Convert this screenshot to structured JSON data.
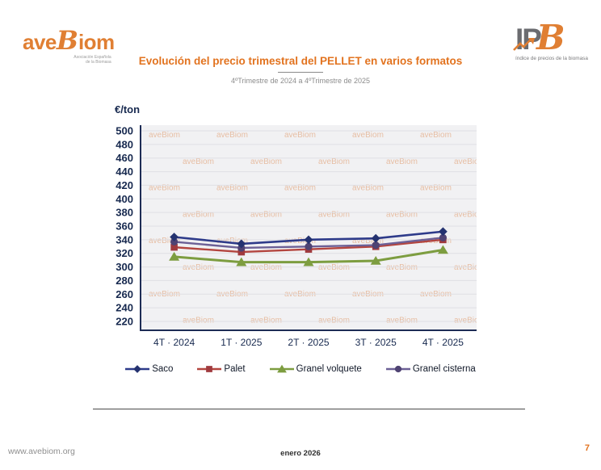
{
  "header": {
    "logo_avebiom": {
      "prefix": "ave",
      "b": "B",
      "suffix": "iom",
      "caption_line1": "Asociación Española",
      "caption_line2": "de la Biomasa"
    },
    "logo_ipb": {
      "text_ip": "IP",
      "text_b": "B",
      "caption": "índice de precios de la biomasa"
    }
  },
  "title_block": {
    "title": "Evolución del precio trimestral del PELLET en varios formatos",
    "subtitle": "4ºTrimestre de 2024 a 4ºTrimestre de 2025"
  },
  "chart_data": {
    "type": "line",
    "title": "Evolución del precio trimestral del PELLET en varios formatos",
    "unit_label": "€/ton",
    "xlabel": "",
    "ylabel": "€/ton",
    "categories": [
      "4T · 2024",
      "1T · 2025",
      "2T · 2025",
      "3T · 2025",
      "4T · 2025"
    ],
    "series": [
      {
        "name": "Saco",
        "marker": "diamond",
        "color": "#2e3b8a",
        "marker_color": "#243270",
        "values": [
          344,
          334,
          340,
          342,
          352
        ]
      },
      {
        "name": "Palet",
        "marker": "square",
        "color": "#b3453f",
        "marker_color": "#a03a3e",
        "values": [
          329,
          322,
          326,
          330,
          340
        ]
      },
      {
        "name": "Granel volquete",
        "marker": "triangle",
        "color": "#7d9d40",
        "marker_color": "#7d9d40",
        "values": [
          315,
          307,
          307,
          309,
          325
        ]
      },
      {
        "name": "Granel cisterna",
        "marker": "circle",
        "color": "#6c6096",
        "marker_color": "#4f4373",
        "values": [
          337,
          328,
          330,
          332,
          343
        ]
      }
    ],
    "ylim": [
      220,
      500
    ],
    "ytick_step": 20,
    "grid": true,
    "legend_position": "bottom",
    "plot_background": "#f1f1f3",
    "axis_color": "#1d2c55",
    "watermark": "aveBiom",
    "watermark_color": "#dd8a53"
  },
  "footer": {
    "website": "www.avebiom.org",
    "date": "enero 2026",
    "page_number": "7"
  }
}
